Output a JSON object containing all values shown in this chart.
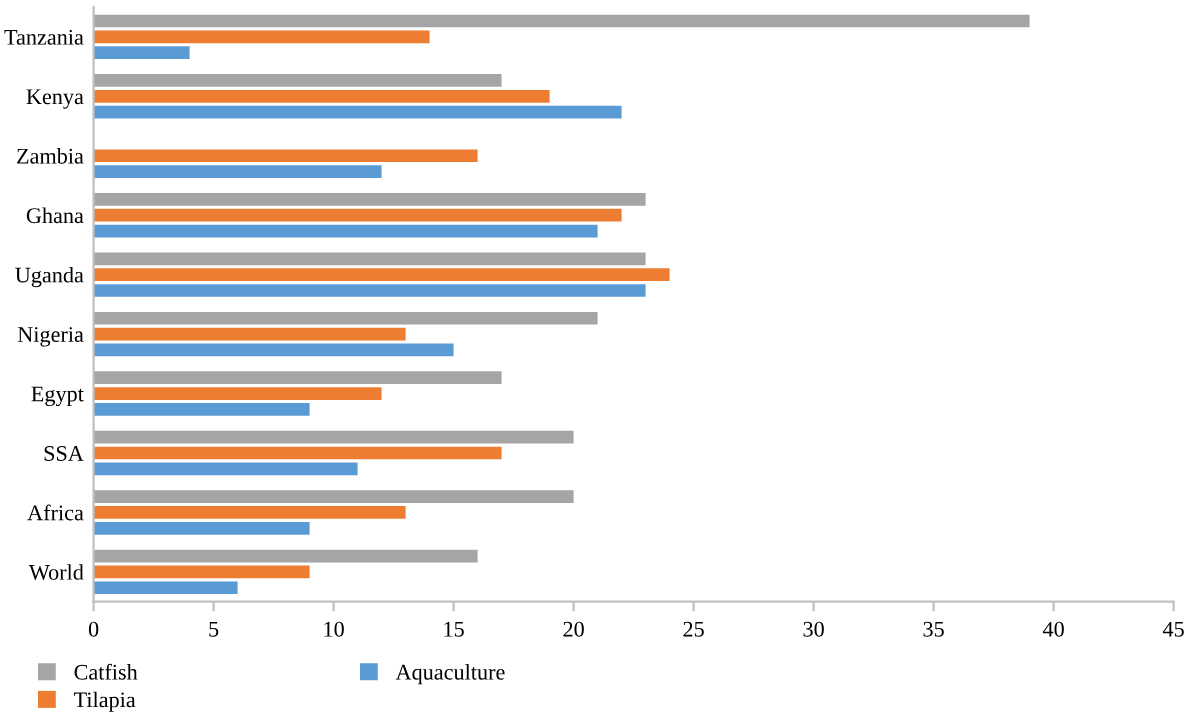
{
  "chart_data": {
    "type": "bar",
    "orientation": "horizontal",
    "categories": [
      "Tanzania",
      "Kenya",
      "Zambia",
      "Ghana",
      "Uganda",
      "Nigeria",
      "Egypt",
      "SSA",
      "Africa",
      "World"
    ],
    "series": [
      {
        "name": "Catfish",
        "color": "#a5a5a5",
        "values": [
          39,
          17,
          null,
          23,
          23,
          21,
          17,
          20,
          20,
          16
        ]
      },
      {
        "name": "Tilapia",
        "color": "#ed7d31",
        "values": [
          14,
          19,
          16,
          22,
          24,
          13,
          12,
          17,
          13,
          9
        ]
      },
      {
        "name": "Aquaculture",
        "color": "#5b9bd5",
        "values": [
          4,
          22,
          12,
          21,
          23,
          15,
          9,
          11,
          9,
          6
        ]
      }
    ],
    "xlim": [
      0,
      45
    ],
    "xticks": [
      0,
      5,
      10,
      15,
      20,
      25,
      30,
      35,
      40,
      45
    ],
    "grid": false,
    "legend": "bottom left"
  }
}
